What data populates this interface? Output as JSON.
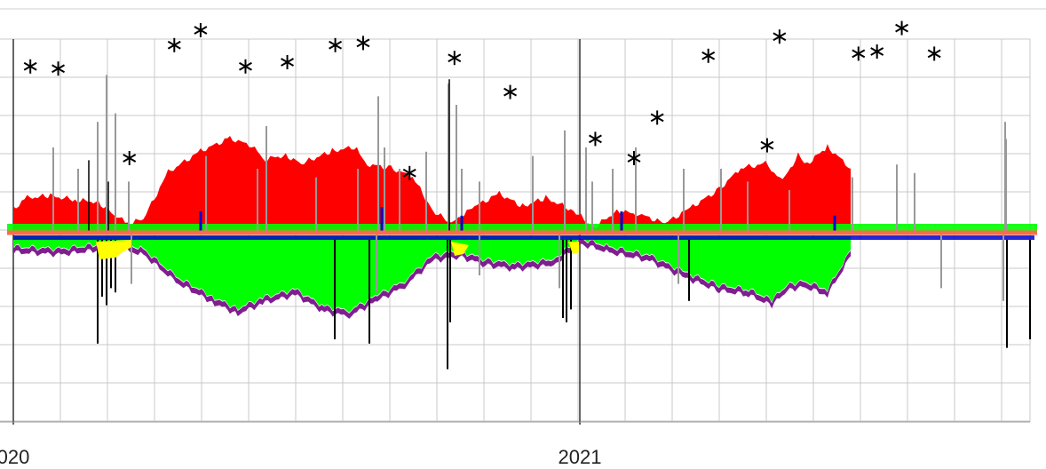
{
  "chart_data": {
    "type": "area",
    "x_range": [
      "2020-01-01",
      "2021-06-25"
    ],
    "x_tick_labels": [
      {
        "text": "020",
        "date": "2020-01-01"
      },
      {
        "text": "2021",
        "date": "2021-01-01"
      }
    ],
    "grid": true,
    "colors": {
      "red": "#ff0000",
      "green": "#00ff00",
      "blue": "#0000cc",
      "purple": "#7f1f8f",
      "gray": "#999999",
      "black": "#000000",
      "yellow": "#ffff00",
      "baseline": "#ff6a4d"
    },
    "series": [
      {
        "color_key": "red",
        "points": [
          [
            "2020-01-01",
            0.55
          ],
          [
            "2020-01-10",
            0.8
          ],
          [
            "2020-01-25",
            0.85
          ],
          [
            "2020-02-10",
            0.75
          ],
          [
            "2020-02-25",
            0.7
          ],
          [
            "2020-03-06",
            0.4
          ],
          [
            "2020-03-15",
            0.2
          ],
          [
            "2020-03-25",
            0.3
          ],
          [
            "2020-04-10",
            1.4
          ],
          [
            "2020-05-01",
            1.9
          ],
          [
            "2020-05-20",
            2.2
          ],
          [
            "2020-06-05",
            2.0
          ],
          [
            "2020-06-10",
            1.7
          ],
          [
            "2020-06-25",
            1.8
          ],
          [
            "2020-07-05",
            1.6
          ],
          [
            "2020-07-25",
            1.9
          ],
          [
            "2020-08-10",
            2.0
          ],
          [
            "2020-08-15",
            1.6
          ],
          [
            "2020-09-01",
            1.5
          ],
          [
            "2020-09-15",
            1.3
          ],
          [
            "2020-09-28",
            0.5
          ],
          [
            "2020-10-10",
            0.2
          ],
          [
            "2020-10-25",
            0.6
          ],
          [
            "2020-11-10",
            0.9
          ],
          [
            "2020-11-25",
            0.6
          ],
          [
            "2020-12-10",
            0.8
          ],
          [
            "2020-12-28",
            0.5
          ],
          [
            "2021-01-10",
            0.1
          ],
          [
            "2021-01-25",
            0.5
          ],
          [
            "2021-02-10",
            0.4
          ],
          [
            "2021-02-25",
            0.2
          ],
          [
            "2021-03-15",
            0.6
          ],
          [
            "2021-04-01",
            1.0
          ],
          [
            "2021-04-15",
            1.5
          ],
          [
            "2021-05-01",
            1.6
          ],
          [
            "2021-05-12",
            1.2
          ],
          [
            "2021-05-22",
            1.8
          ],
          [
            "2021-05-28",
            1.6
          ],
          [
            "2021-06-10",
            2.0
          ],
          [
            "2021-06-25",
            1.5
          ]
        ]
      },
      {
        "color_key": "green",
        "points": [
          [
            "2020-01-01",
            -0.3
          ],
          [
            "2020-02-01",
            -0.35
          ],
          [
            "2020-03-06",
            -0.2
          ],
          [
            "2020-03-25",
            -0.35
          ],
          [
            "2020-04-15",
            -1.0
          ],
          [
            "2020-05-10",
            -1.5
          ],
          [
            "2020-05-25",
            -1.75
          ],
          [
            "2020-06-10",
            -1.5
          ],
          [
            "2020-07-01",
            -1.3
          ],
          [
            "2020-07-20",
            -1.7
          ],
          [
            "2020-08-05",
            -1.8
          ],
          [
            "2020-08-25",
            -1.4
          ],
          [
            "2020-09-10",
            -1.1
          ],
          [
            "2020-09-28",
            -0.5
          ],
          [
            "2020-10-15",
            -0.4
          ],
          [
            "2020-11-01",
            -0.6
          ],
          [
            "2020-11-20",
            -0.7
          ],
          [
            "2020-12-15",
            -0.6
          ],
          [
            "2021-01-01",
            -0.1
          ],
          [
            "2021-01-20",
            -0.3
          ],
          [
            "2021-02-15",
            -0.5
          ],
          [
            "2021-03-10",
            -0.9
          ],
          [
            "2021-04-01",
            -1.2
          ],
          [
            "2021-04-20",
            -1.3
          ],
          [
            "2021-05-05",
            -1.55
          ],
          [
            "2021-05-15",
            -1.2
          ],
          [
            "2021-05-25",
            -1.1
          ],
          [
            "2021-06-10",
            -1.3
          ],
          [
            "2021-06-25",
            -0.4
          ]
        ]
      }
    ],
    "markers": {
      "symbol": "asterisk",
      "points": [
        [
          "2020-01-12",
          3.9
        ],
        [
          "2020-01-30",
          3.85
        ],
        [
          "2020-03-16",
          1.75
        ],
        [
          "2020-04-14",
          4.4
        ],
        [
          "2020-05-01",
          4.75
        ],
        [
          "2020-05-30",
          3.9
        ],
        [
          "2020-06-26",
          4.0
        ],
        [
          "2020-07-27",
          4.4
        ],
        [
          "2020-08-14",
          4.45
        ],
        [
          "2020-09-13",
          1.4
        ],
        [
          "2020-10-12",
          4.1
        ],
        [
          "2020-11-17",
          3.3
        ],
        [
          "2021-01-11",
          2.2
        ],
        [
          "2021-02-05",
          1.75
        ],
        [
          "2021-02-20",
          2.7
        ],
        [
          "2021-03-25",
          4.15
        ],
        [
          "2021-05-02",
          2.05
        ],
        [
          "2021-05-10",
          4.6
        ],
        [
          "2021-06-30",
          4.2
        ],
        [
          "2021-07-12",
          4.25
        ],
        [
          "2021-07-28",
          4.8
        ],
        [
          "2021-08-18",
          4.2
        ]
      ]
    }
  }
}
